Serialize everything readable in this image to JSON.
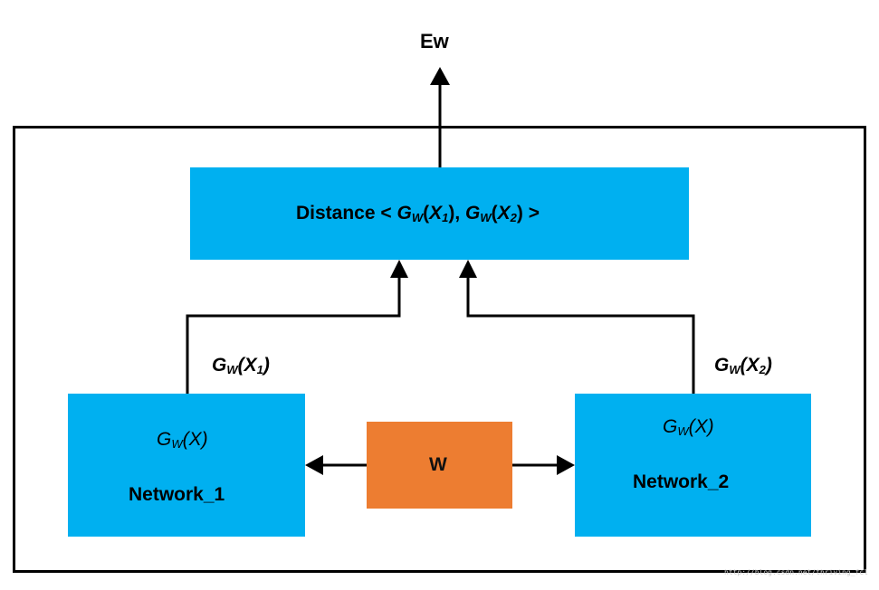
{
  "output_label": "Ew",
  "distance": {
    "prefix": "Distance < ",
    "g": "G",
    "w": "W",
    "open": "(",
    "x": "X",
    "sub1": "1",
    "sub2": "2",
    "sep": "), ",
    "close": ") >"
  },
  "edge_label_1": {
    "g": "G",
    "w": "W",
    "x": "(X",
    "sub": "1",
    "close": ")"
  },
  "edge_label_2": {
    "g": "G",
    "w": "W",
    "x": "(X",
    "sub": "2",
    "close": ")"
  },
  "network_1": {
    "g": "G",
    "w": "W",
    "x": "(X)",
    "name": "Network_1"
  },
  "network_2": {
    "g": "G",
    "w": "W",
    "x": "(X)",
    "name": "Network_2"
  },
  "shared_weights": "W",
  "watermark": "http://blog.csdn.net/thriving_fcl",
  "colors": {
    "network_box": "#00b0f0",
    "distance_box": "#00b0f0",
    "weights_box": "#ed7d31"
  }
}
